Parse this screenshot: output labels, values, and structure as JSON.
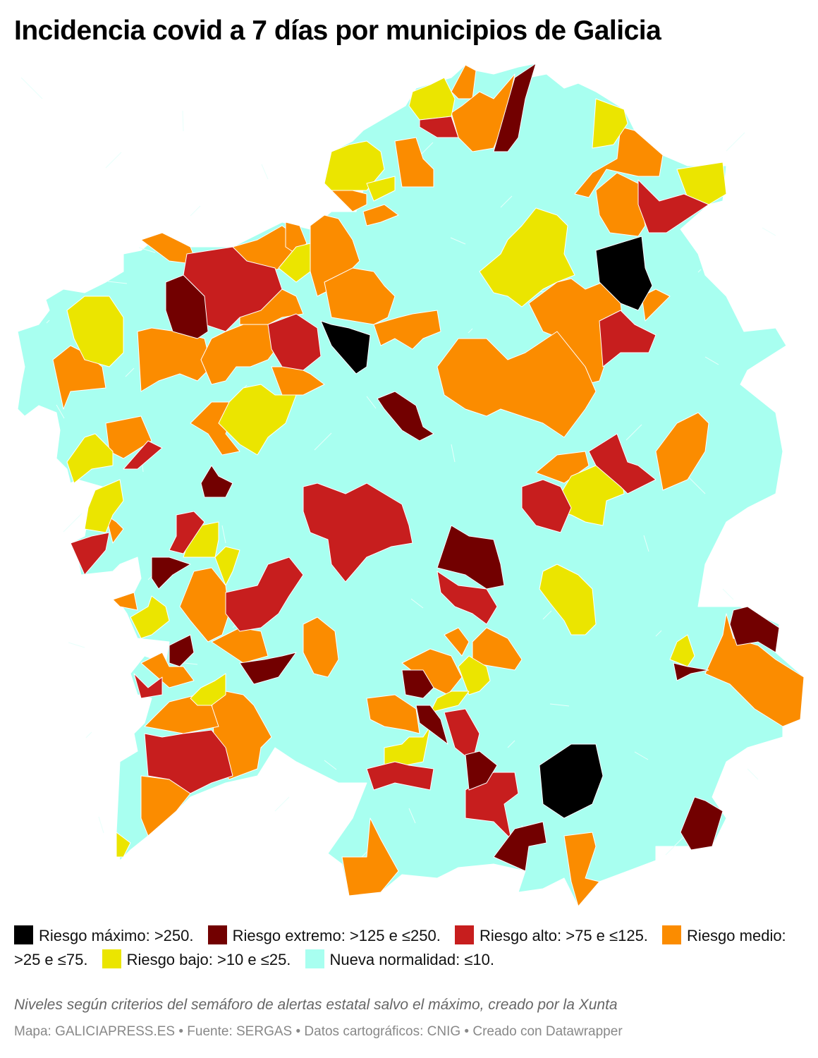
{
  "title": "Incidencia covid a 7 días por municipios de Galicia",
  "legend": [
    {
      "key": "maximo",
      "label": "Riesgo máximo: >250.",
      "color": "#000000"
    },
    {
      "key": "extremo",
      "label": "Riesgo extremo: >125 e ≤250.",
      "color": "#720000"
    },
    {
      "key": "alto",
      "label": "Riesgo alto: >75 e ≤125.",
      "color": "#c71e1e"
    },
    {
      "key": "medio",
      "label": "Riesgo medio: >25 e ≤75.",
      "color": "#fb8c00"
    },
    {
      "key": "bajo",
      "label": "Riesgo bajo: >10 e ≤25.",
      "color": "#ebe500"
    },
    {
      "key": "normal",
      "label": "Nueva normalidad: ≤10.",
      "color": "#a8fff0"
    }
  ],
  "note": "Niveles según criterios del semáforo de alertas estatal salvo el máximo, creado por la Xunta",
  "source": "Mapa: GALICIAPRESS.ES • Fuente: SERGAS • Datos cartográficos: CNIG • Creado con Datawrapper"
}
